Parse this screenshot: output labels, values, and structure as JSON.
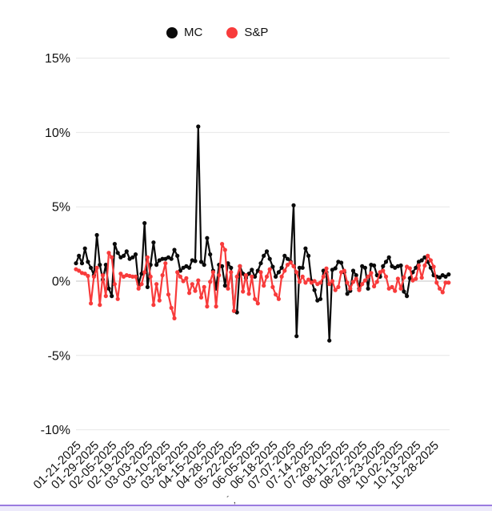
{
  "page": {
    "background": "#ffffff"
  },
  "legend": {
    "items": [
      {
        "label": "MC",
        "color": "#0a0a0a"
      },
      {
        "label": "S&P",
        "color": "#f83b3b"
      }
    ]
  },
  "chart_data": {
    "type": "line",
    "title": "",
    "xlabel": "",
    "ylabel": "",
    "unit": "%",
    "grid": "horizontal",
    "legend_position": "top",
    "y_ticks": [
      "15%",
      "10%",
      "5%",
      "0%",
      "-5%",
      "-10%"
    ],
    "y_tick_values": [
      15,
      10,
      5,
      0,
      -5,
      -10
    ],
    "ylim": [
      -10,
      15
    ],
    "x_labels": [
      "01-21-2025",
      "01-29-2025",
      "02-05-2025",
      "02-19-2025",
      "03-03-2025",
      "03-10-2025",
      "03-26-2025",
      "04-15-2025",
      "04-28-2025",
      "05-22-2025",
      "06-05-2025",
      "06-18-2025",
      "07-07-2025",
      "07-14-2025",
      "07-28-2025",
      "08-11-2025",
      "08-27-2025",
      "09-23-2025",
      "10-02-2025",
      "10-13-2025",
      "10-28-2025"
    ],
    "x_label_every_n_points": 6,
    "series": [
      {
        "name": "MC",
        "color": "#0a0a0a",
        "values": [
          1.2,
          1.7,
          1.2,
          2.2,
          1.3,
          0.9,
          0.4,
          3.1,
          1.1,
          0.1,
          1.1,
          -0.5,
          -1.0,
          2.5,
          1.9,
          1.6,
          1.7,
          2.0,
          1.5,
          1.6,
          1.8,
          -0.2,
          0.5,
          3.9,
          -0.4,
          1.1,
          2.6,
          1.1,
          1.4,
          1.5,
          1.5,
          1.6,
          1.5,
          2.1,
          1.7,
          0.7,
          0.9,
          1.0,
          0.9,
          1.4,
          1.35,
          10.4,
          1.3,
          1.1,
          2.9,
          1.8,
          0.7,
          -0.5,
          1.1,
          1.0,
          -0.3,
          1.2,
          0.9,
          -2.0,
          -2.1,
          1.0,
          0.5,
          0.2,
          0.5,
          0.76,
          0.3,
          0.7,
          1.2,
          1.7,
          2.0,
          1.5,
          0.97,
          0.3,
          0.6,
          0.9,
          1.7,
          1.5,
          1.3,
          5.1,
          -3.7,
          0.9,
          0.9,
          2.2,
          1.7,
          0.0,
          -0.6,
          -1.3,
          -1.2,
          0.7,
          0.6,
          -4.0,
          0.76,
          0.86,
          1.3,
          1.24,
          0.6,
          -0.85,
          -0.65,
          0.7,
          0.4,
          -0.5,
          1.0,
          0.9,
          -0.5,
          1.1,
          1.05,
          0.4,
          0.3,
          1.0,
          1.3,
          1.6,
          1.0,
          0.9,
          1.0,
          1.05,
          -0.7,
          -1.0,
          0.2,
          0.6,
          0.9,
          1.3,
          1.4,
          1.6,
          1.3,
          0.9,
          0.4,
          0.3,
          0.25,
          0.4,
          0.3,
          0.45
        ]
      },
      {
        "name": "S&P",
        "color": "#f83b3b",
        "values": [
          0.8,
          0.7,
          0.55,
          0.5,
          0.35,
          -1.5,
          0.3,
          0.9,
          -1.6,
          0.4,
          -1.0,
          1.9,
          1.6,
          -0.2,
          -1.2,
          0.5,
          0.3,
          0.4,
          0.35,
          0.3,
          0.3,
          -0.5,
          -0.2,
          0.6,
          1.6,
          0.3,
          -1.6,
          -0.2,
          -1.3,
          0.4,
          1.2,
          -0.9,
          -1.8,
          -2.5,
          0.6,
          0.3,
          0.0,
          0.2,
          -0.8,
          -0.2,
          -0.65,
          0.05,
          -1.1,
          -0.4,
          -1.7,
          -0.05,
          0.6,
          -1.7,
          0.4,
          2.5,
          2.1,
          -0.5,
          0.6,
          -2.0,
          0.3,
          1.0,
          -0.7,
          0.4,
          -0.85,
          0.3,
          -1.2,
          -1.5,
          0.6,
          -0.3,
          0.3,
          0.8,
          -0.4,
          -0.9,
          -1.2,
          0.3,
          0.7,
          1.1,
          1.25,
          1.0,
          0.6,
          -0.05,
          0.3,
          -0.1,
          0.1,
          -0.1,
          0.0,
          -0.2,
          -0.1,
          0.3,
          0.85,
          -0.2,
          0.0,
          -0.6,
          -0.4,
          0.6,
          0.7,
          -0.1,
          -0.5,
          -0.05,
          0.16,
          -0.6,
          -0.2,
          0.05,
          0.3,
          0.55,
          -0.35,
          -0.05,
          0.6,
          0.7,
          0.3,
          -0.5,
          -0.4,
          -0.66,
          0.16,
          -0.5,
          0.25,
          0.97,
          0.86,
          0.05,
          0.16,
          1.05,
          0.23,
          1.05,
          1.7,
          1.4,
          0.97,
          -0.1,
          -0.5,
          -0.75,
          -0.1,
          -0.1
        ]
      }
    ]
  },
  "stray_marks": "´‚",
  "bottom_strip": {
    "border_color": "#9b7ce0",
    "fill_color": "#edeafb"
  }
}
